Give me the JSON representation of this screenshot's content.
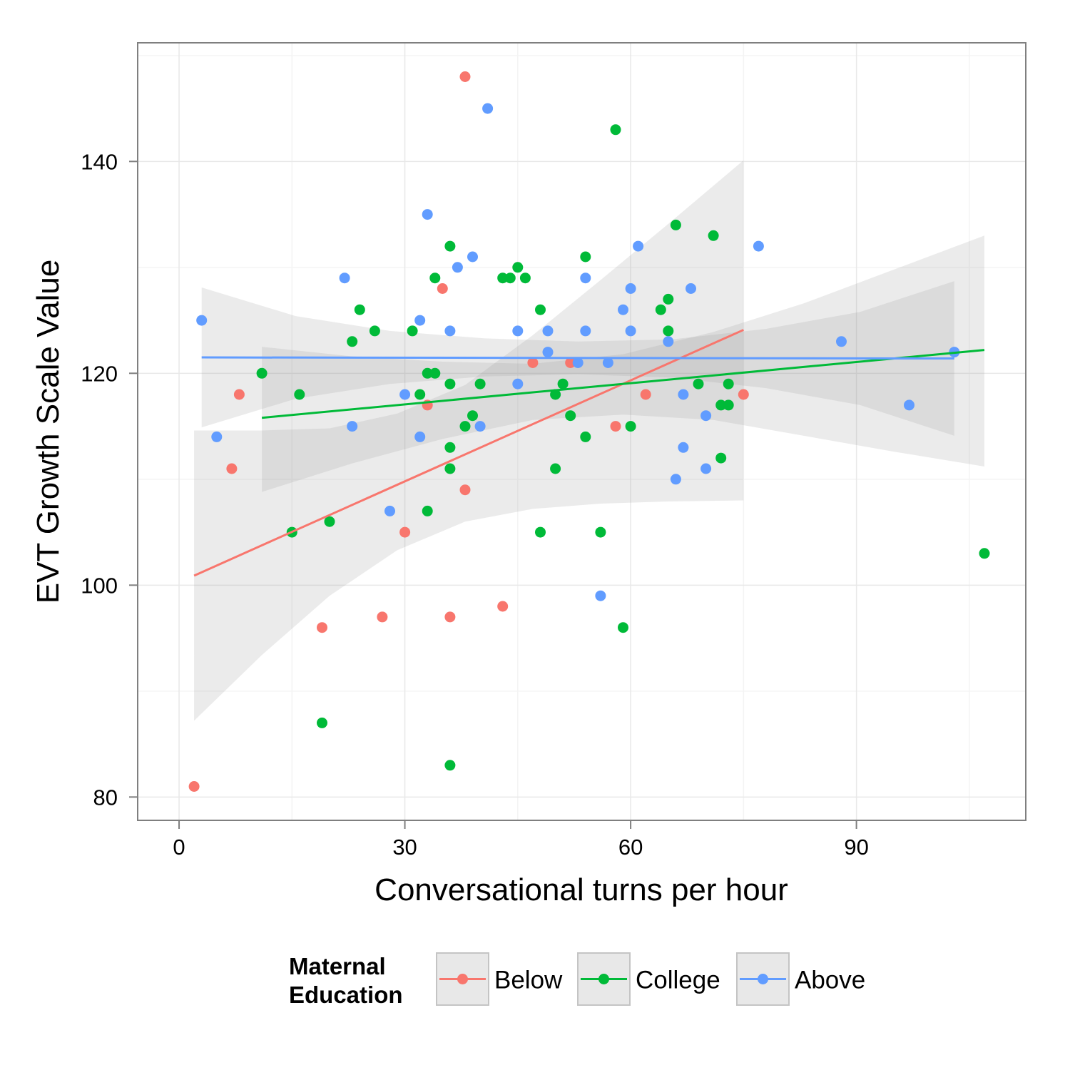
{
  "chart_data": {
    "type": "scatter",
    "xlabel": "Conversational turns per hour",
    "ylabel": "EVT Growth Scale Value",
    "xlim": [
      -5.5,
      112.5
    ],
    "ylim": [
      77.8,
      151.2
    ],
    "x_ticks": [
      0,
      30,
      60,
      90
    ],
    "y_ticks": [
      80,
      100,
      120,
      140
    ],
    "x_tick_labels": [
      "0",
      "30",
      "60",
      "90"
    ],
    "y_tick_labels": [
      "80",
      "100",
      "120",
      "140"
    ],
    "grid": true,
    "legend": {
      "title_lines": [
        "Maternal",
        "Education"
      ],
      "position": "bottom"
    },
    "series": [
      {
        "name": "Below",
        "color": "#F8766D",
        "points": [
          [
            2,
            81
          ],
          [
            8,
            118
          ],
          [
            7,
            111
          ],
          [
            19,
            96
          ],
          [
            27,
            97
          ],
          [
            30,
            105
          ],
          [
            33,
            117
          ],
          [
            35,
            128
          ],
          [
            36,
            97
          ],
          [
            38,
            148
          ],
          [
            38,
            109
          ],
          [
            43,
            98
          ],
          [
            47,
            121
          ],
          [
            52,
            121
          ],
          [
            58,
            115
          ],
          [
            62,
            118
          ],
          [
            75,
            118
          ]
        ],
        "fit": {
          "x": [
            2,
            75
          ],
          "y": [
            100.9,
            124.1
          ]
        },
        "band": {
          "x": [
            2,
            11,
            20,
            29,
            38,
            47,
            56,
            65,
            75
          ],
          "lower": [
            87.2,
            93.4,
            99.0,
            103.3,
            106.0,
            107.2,
            107.7,
            107.9,
            108.0
          ],
          "upper": [
            114.6,
            114.6,
            114.8,
            116.2,
            118.9,
            123.6,
            128.8,
            134.1,
            140.1
          ]
        }
      },
      {
        "name": "College",
        "color": "#00BA38",
        "points": [
          [
            11,
            120
          ],
          [
            15,
            105
          ],
          [
            16,
            118
          ],
          [
            19,
            87
          ],
          [
            20,
            106
          ],
          [
            23,
            123
          ],
          [
            24,
            126
          ],
          [
            26,
            124
          ],
          [
            31,
            124
          ],
          [
            32,
            118
          ],
          [
            33,
            120
          ],
          [
            34,
            120
          ],
          [
            33,
            107
          ],
          [
            34,
            129
          ],
          [
            36,
            132
          ],
          [
            36,
            119
          ],
          [
            36,
            113
          ],
          [
            36,
            111
          ],
          [
            36,
            83
          ],
          [
            38,
            115
          ],
          [
            39,
            116
          ],
          [
            40,
            119
          ],
          [
            43,
            129
          ],
          [
            44,
            129
          ],
          [
            45,
            130
          ],
          [
            46,
            129
          ],
          [
            48,
            126
          ],
          [
            48,
            105
          ],
          [
            50,
            118
          ],
          [
            50,
            111
          ],
          [
            51,
            119
          ],
          [
            52,
            116
          ],
          [
            54,
            131
          ],
          [
            54,
            114
          ],
          [
            56,
            105
          ],
          [
            58,
            143
          ],
          [
            59,
            96
          ],
          [
            60,
            115
          ],
          [
            64,
            126
          ],
          [
            65,
            124
          ],
          [
            65,
            127
          ],
          [
            66,
            134
          ],
          [
            69,
            119
          ],
          [
            71,
            133
          ],
          [
            72,
            117
          ],
          [
            72,
            112
          ],
          [
            73,
            117
          ],
          [
            73,
            119
          ],
          [
            107,
            103
          ]
        ],
        "fit": {
          "x": [
            11,
            107
          ],
          "y": [
            115.8,
            122.2
          ]
        },
        "band": {
          "x": [
            11,
            23,
            35,
            47,
            59,
            71,
            83,
            95,
            107
          ],
          "lower": [
            108.8,
            111.5,
            113.8,
            115.6,
            116.1,
            115.6,
            114.1,
            112.6,
            111.2
          ],
          "upper": [
            122.5,
            121.6,
            121.1,
            120.9,
            121.8,
            123.9,
            126.6,
            129.8,
            133.0
          ]
        }
      },
      {
        "name": "Above",
        "color": "#619CFF",
        "points": [
          [
            3,
            125
          ],
          [
            5,
            114
          ],
          [
            22,
            129
          ],
          [
            23,
            115
          ],
          [
            28,
            107
          ],
          [
            30,
            118
          ],
          [
            32,
            125
          ],
          [
            32,
            114
          ],
          [
            33,
            135
          ],
          [
            36,
            124
          ],
          [
            37,
            130
          ],
          [
            39,
            131
          ],
          [
            40,
            115
          ],
          [
            41,
            145
          ],
          [
            45,
            124
          ],
          [
            45,
            119
          ],
          [
            49,
            124
          ],
          [
            49,
            122
          ],
          [
            53,
            121
          ],
          [
            54,
            129
          ],
          [
            54,
            124
          ],
          [
            56,
            99
          ],
          [
            57,
            121
          ],
          [
            59,
            126
          ],
          [
            60,
            128
          ],
          [
            60,
            124
          ],
          [
            61,
            132
          ],
          [
            65,
            123
          ],
          [
            66,
            110
          ],
          [
            67,
            118
          ],
          [
            67,
            113
          ],
          [
            68,
            128
          ],
          [
            70,
            116
          ],
          [
            70,
            111
          ],
          [
            77,
            132
          ],
          [
            88,
            123
          ],
          [
            97,
            117
          ],
          [
            103,
            122
          ]
        ],
        "fit": {
          "x": [
            3,
            103
          ],
          "y": [
            121.5,
            121.4
          ]
        },
        "band": {
          "x": [
            3,
            15.5,
            28,
            40.5,
            53,
            65.5,
            78,
            90.5,
            103
          ],
          "lower": [
            114.9,
            117.6,
            119.0,
            119.7,
            119.9,
            119.6,
            118.6,
            117.0,
            114.1
          ],
          "upper": [
            128.1,
            125.4,
            124.0,
            123.3,
            123.0,
            123.2,
            124.2,
            125.8,
            128.7
          ]
        }
      }
    ]
  }
}
